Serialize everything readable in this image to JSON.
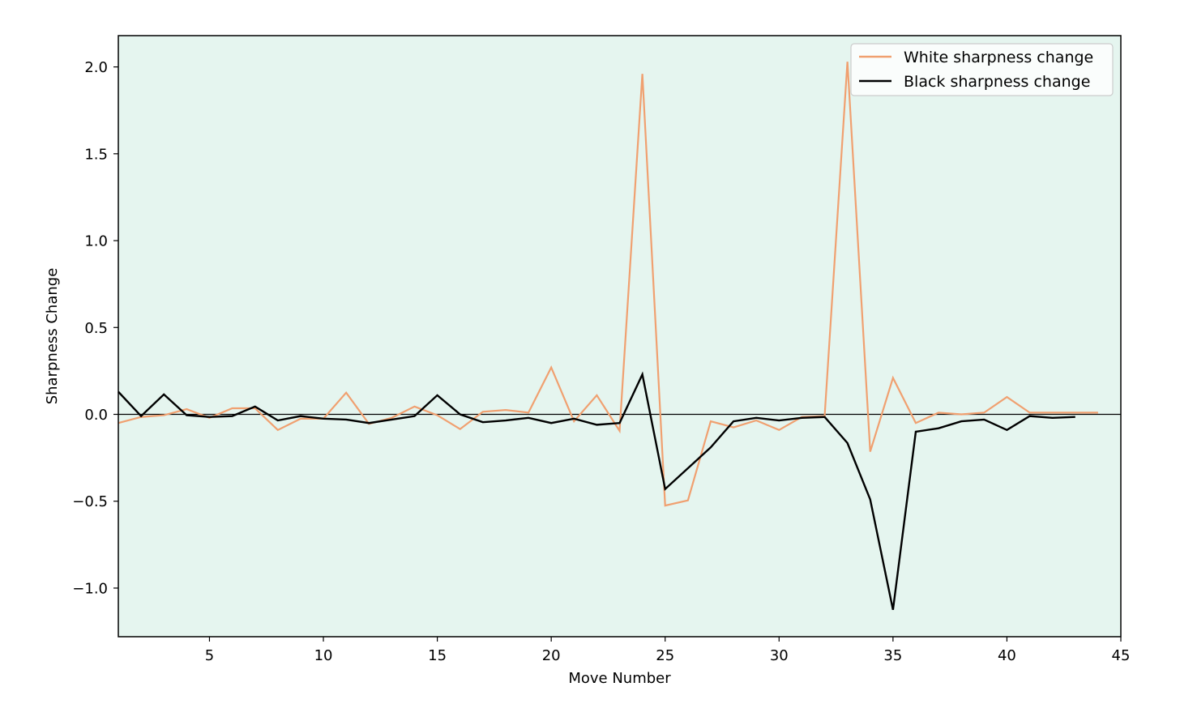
{
  "chart_data": {
    "type": "line",
    "xlabel": "Move Number",
    "ylabel": "Sharpness Change",
    "xlim": [
      1,
      45
    ],
    "ylim": [
      -1.28,
      2.18
    ],
    "xticks": [
      5,
      10,
      15,
      20,
      25,
      30,
      35,
      40,
      45
    ],
    "yticks": [
      -1.0,
      -0.5,
      0.0,
      0.5,
      1.0,
      1.5,
      2.0
    ],
    "ytick_labels": [
      "−1.0",
      "−0.5",
      "0.0",
      "0.5",
      "1.0",
      "1.5",
      "2.0"
    ],
    "background_color": "#e5f5ef",
    "zero_line": true,
    "grid": false,
    "legend_position": "top-right",
    "series": [
      {
        "name": "White sharpness change",
        "color": "#f0a070",
        "x": [
          1,
          2,
          3,
          4,
          5,
          6,
          7,
          8,
          9,
          10,
          11,
          12,
          13,
          14,
          15,
          16,
          17,
          18,
          19,
          20,
          21,
          22,
          23,
          24,
          25,
          26,
          27,
          28,
          29,
          30,
          31,
          32,
          33,
          34,
          35,
          36,
          37,
          38,
          39,
          40,
          41,
          42,
          43,
          44
        ],
        "values": [
          -0.05,
          -0.015,
          -0.005,
          0.03,
          -0.02,
          0.035,
          0.035,
          -0.09,
          -0.025,
          -0.025,
          0.125,
          -0.055,
          -0.02,
          0.045,
          -0.005,
          -0.085,
          0.015,
          0.025,
          0.01,
          0.27,
          -0.04,
          0.11,
          -0.095,
          1.96,
          -0.525,
          -0.495,
          -0.04,
          -0.075,
          -0.035,
          -0.09,
          -0.015,
          -0.01,
          2.03,
          -0.215,
          0.21,
          -0.05,
          0.01,
          0.0,
          0.01,
          0.1,
          0.01,
          0.01,
          0.01,
          0.01
        ]
      },
      {
        "name": "Black sharpness change",
        "color": "#000000",
        "x": [
          1,
          2,
          3,
          4,
          5,
          6,
          7,
          8,
          9,
          10,
          11,
          12,
          13,
          14,
          15,
          16,
          17,
          18,
          19,
          20,
          21,
          22,
          23,
          24,
          25,
          26,
          27,
          28,
          29,
          30,
          31,
          32,
          33,
          34,
          35,
          36,
          37,
          38,
          39,
          40,
          41,
          42,
          43
        ],
        "values": [
          0.13,
          -0.01,
          0.115,
          -0.005,
          -0.015,
          -0.01,
          0.045,
          -0.035,
          -0.01,
          -0.025,
          -0.03,
          -0.05,
          -0.03,
          -0.01,
          0.11,
          0.0,
          -0.045,
          -0.035,
          -0.02,
          -0.05,
          -0.025,
          -0.06,
          -0.05,
          0.23,
          -0.43,
          -0.31,
          -0.19,
          -0.04,
          -0.02,
          -0.035,
          -0.02,
          -0.015,
          -0.165,
          -0.49,
          -1.125,
          -0.1,
          -0.08,
          -0.04,
          -0.03,
          -0.09,
          -0.01,
          -0.02,
          -0.015
        ]
      }
    ]
  }
}
